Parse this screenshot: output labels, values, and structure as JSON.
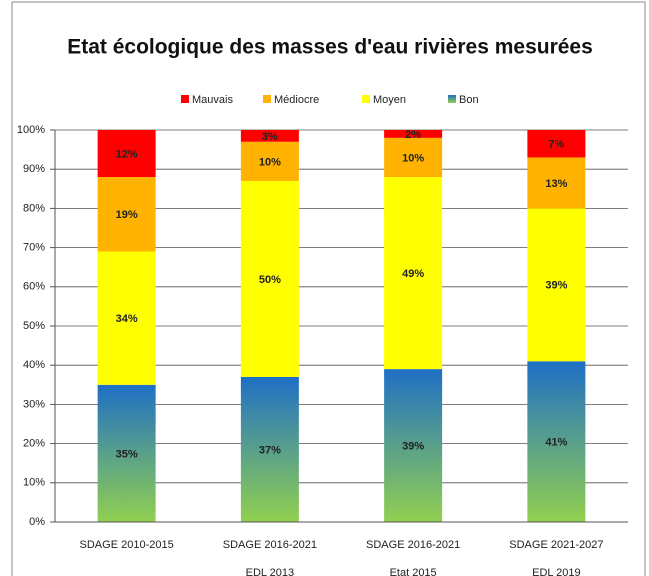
{
  "chart_data": {
    "type": "stacked_bar",
    "title": "Etat écologique des masses d'eau rivières mesurées",
    "categories": [
      [
        "SDAGE 2010-2015"
      ],
      [
        "SDAGE 2016-2021",
        "EDL 2013"
      ],
      [
        "SDAGE 2016-2021",
        "Etat 2015"
      ],
      [
        "SDAGE 2021-2027",
        "EDL 2019"
      ]
    ],
    "series": [
      {
        "name": "Mauvais",
        "color": "#ff0000",
        "values": [
          12,
          3,
          2,
          7
        ],
        "value_labels": [
          "12%",
          "3%",
          "2%",
          "7%"
        ]
      },
      {
        "name": "Médiocre",
        "color": "#ffb300",
        "values": [
          19,
          10,
          10,
          13
        ],
        "value_labels": [
          "19%",
          "10%",
          "10%",
          "13%"
        ]
      },
      {
        "name": "Moyen",
        "color": "#ffff00",
        "values": [
          34,
          50,
          49,
          39
        ],
        "value_labels": [
          "34%",
          "50%",
          "49%",
          "39%"
        ]
      },
      {
        "name": "Bon",
        "color": "#1f6fc5",
        "gradient_color": "#92d050",
        "values": [
          35,
          37,
          39,
          41
        ],
        "value_labels": [
          "35%",
          "37%",
          "39%",
          "41%"
        ]
      }
    ],
    "ylim": [
      0,
      100
    ],
    "yticks": [
      {
        "value": 0,
        "label": "0%"
      },
      {
        "value": 10,
        "label": "10%"
      },
      {
        "value": 20,
        "label": "20%"
      },
      {
        "value": 30,
        "label": "30%"
      },
      {
        "value": 40,
        "label": "40%"
      },
      {
        "value": 50,
        "label": "50%"
      },
      {
        "value": 60,
        "label": "60%"
      },
      {
        "value": 70,
        "label": "70%"
      },
      {
        "value": 80,
        "label": "80%"
      },
      {
        "value": 90,
        "label": "90%"
      },
      {
        "value": 100,
        "label": "100%"
      }
    ],
    "grid": true,
    "legend": "top"
  }
}
